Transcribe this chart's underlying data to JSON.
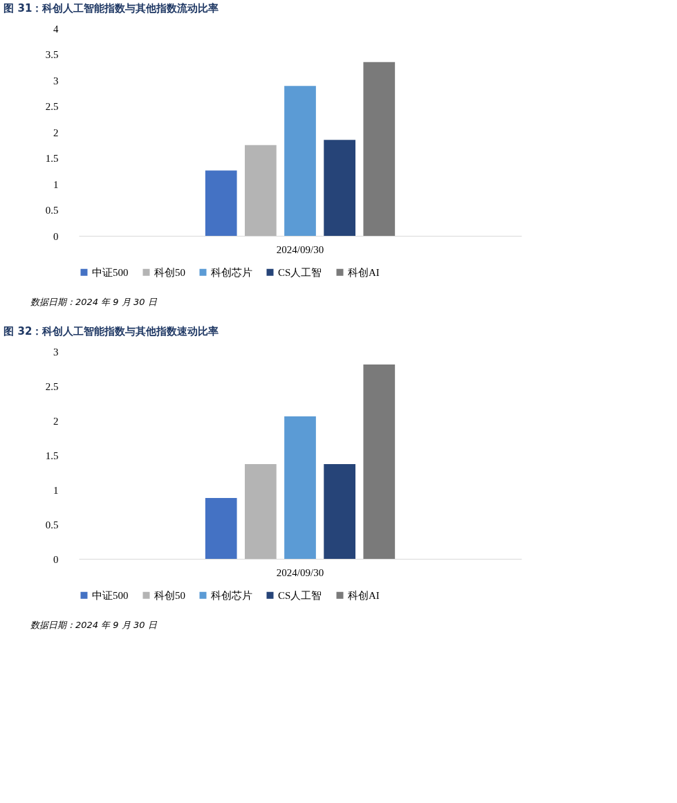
{
  "chart_data": [
    {
      "type": "bar",
      "title": "图 31：科创人工智能指数与其他指数流动比率",
      "categories": [
        "2024/09/30"
      ],
      "series": [
        {
          "name": "中证500",
          "color": "#4472c4",
          "values": [
            1.26
          ]
        },
        {
          "name": "科创50",
          "color": "#b4b4b4",
          "values": [
            1.75
          ]
        },
        {
          "name": "科创芯片",
          "color": "#5b9bd5",
          "values": [
            2.89
          ]
        },
        {
          "name": "CS人工智",
          "color": "#264478",
          "values": [
            1.85
          ]
        },
        {
          "name": "科创AI",
          "color": "#7a7a7a",
          "values": [
            3.35
          ]
        }
      ],
      "ylim": [
        0,
        4
      ],
      "yticks": [
        0,
        0.5,
        1,
        1.5,
        2,
        2.5,
        3,
        3.5,
        4
      ],
      "grid": false,
      "legend": "bottom",
      "annotations": [
        "数据日期：2024 年 9 月 30 日"
      ]
    },
    {
      "type": "bar",
      "title": "图 32：科创人工智能指数与其他指数速动比率",
      "categories": [
        "2024/09/30"
      ],
      "series": [
        {
          "name": "中证500",
          "color": "#4472c4",
          "values": [
            0.88
          ]
        },
        {
          "name": "科创50",
          "color": "#b4b4b4",
          "values": [
            1.37
          ]
        },
        {
          "name": "科创芯片",
          "color": "#5b9bd5",
          "values": [
            2.06
          ]
        },
        {
          "name": "CS人工智",
          "color": "#264478",
          "values": [
            1.37
          ]
        },
        {
          "name": "科创AI",
          "color": "#7a7a7a",
          "values": [
            2.81
          ]
        }
      ],
      "ylim": [
        0,
        3
      ],
      "yticks": [
        0,
        0.5,
        1,
        1.5,
        2,
        2.5,
        3
      ],
      "grid": false,
      "legend": "bottom",
      "annotations": [
        "数据日期：2024 年 9 月 30 日"
      ]
    }
  ]
}
